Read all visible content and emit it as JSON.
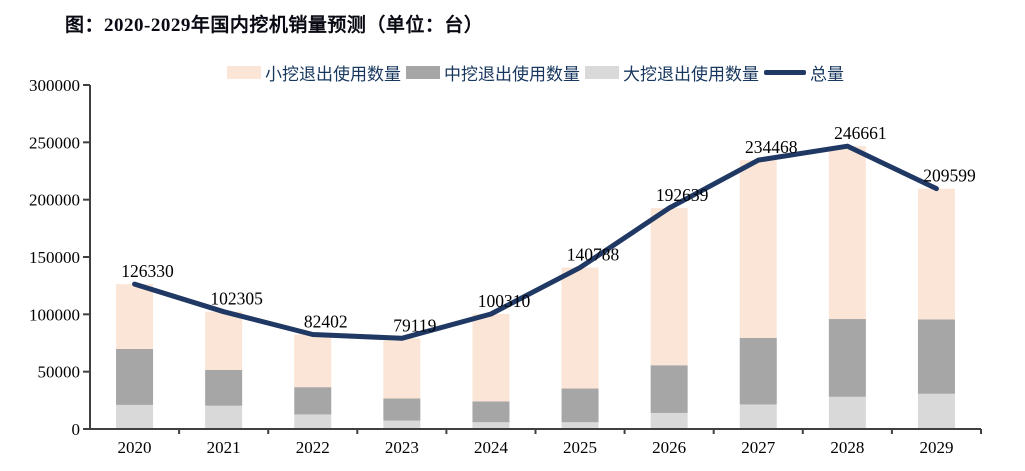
{
  "title": "图：2020-2029年国内挖机销量预测（单位：台）",
  "legend": [
    {
      "label": "小挖退出使用数量",
      "color": "#fbe5d6",
      "swatch": "box"
    },
    {
      "label": "中挖退出使用数量",
      "color": "#a6a6a6",
      "swatch": "box"
    },
    {
      "label": "大挖退出使用数量",
      "color": "#d9d9d9",
      "swatch": "box"
    },
    {
      "label": "总量",
      "color": "#1f3864",
      "swatch": "line"
    }
  ],
  "chart_data": {
    "type": "bar",
    "subtype": "stacked-bars-with-total-line",
    "title": "图：2020-2029年国内挖机销量预测（单位：台）",
    "categories": [
      "2020",
      "2021",
      "2022",
      "2023",
      "2024",
      "2025",
      "2026",
      "2027",
      "2028",
      "2029"
    ],
    "series": [
      {
        "name": "大挖退出使用数量",
        "color": "#d9d9d9",
        "values": [
          21000,
          20300,
          12700,
          7400,
          5900,
          5900,
          14000,
          21400,
          28100,
          30700
        ]
      },
      {
        "name": "中挖退出使用数量",
        "color": "#a6a6a6",
        "values": [
          48800,
          31150,
          23800,
          19200,
          18100,
          29400,
          41600,
          58100,
          67800,
          64800
        ]
      },
      {
        "name": "小挖退出使用数量",
        "color": "#fbe5d6",
        "values": [
          56530,
          50855,
          45902,
          52519,
          76310,
          105488,
          137039,
          154968,
          150761,
          114099
        ]
      }
    ],
    "line_series": {
      "name": "总量",
      "color": "#1f3864",
      "values": [
        126330,
        102305,
        82402,
        79119,
        100310,
        140788,
        192639,
        234468,
        246661,
        209599
      ]
    },
    "data_labels": [
      "126330",
      "102305",
      "82402",
      "79119",
      "100310",
      "140788",
      "192639",
      "234468",
      "246661",
      "209599"
    ],
    "ylim": [
      0,
      300000
    ],
    "yticks": [
      0,
      50000,
      100000,
      150000,
      200000,
      250000,
      300000
    ],
    "ytick_labels": [
      "0",
      "50000",
      "100000",
      "150000",
      "200000",
      "250000",
      "300000"
    ],
    "xlabel": "",
    "ylabel": "",
    "grid": "off",
    "legend_position": "top-center",
    "axis_color": "#404040",
    "label_color": "#000000"
  }
}
